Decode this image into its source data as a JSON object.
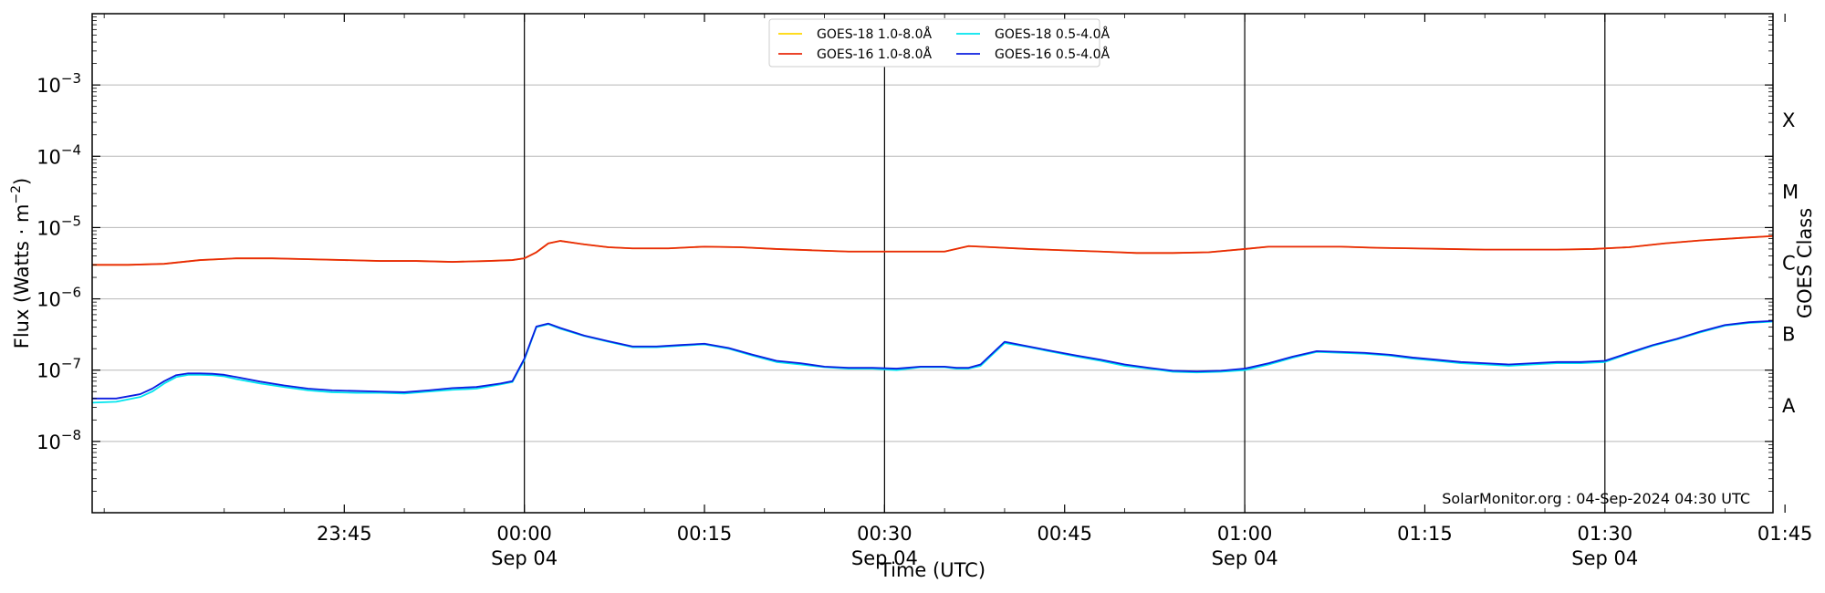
{
  "chart_data": {
    "type": "line",
    "title": "",
    "xlabel": "Time (UTC)",
    "ylabel_main": "Flux (Watts · m",
    "ylabel_exp": "−2",
    "ylabel_close": ")",
    "y2label": "GOES Class",
    "yscale": "log",
    "ylim": [
      1e-09,
      0.01
    ],
    "xlim_minutes": [
      -36,
      104
    ],
    "y_ticks": [
      {
        "value": 1e-08,
        "base": "10",
        "exp": "−8"
      },
      {
        "value": 1e-07,
        "base": "10",
        "exp": "−7"
      },
      {
        "value": 1e-06,
        "base": "10",
        "exp": "−6"
      },
      {
        "value": 1e-05,
        "base": "10",
        "exp": "−5"
      },
      {
        "value": 0.0001,
        "base": "10",
        "exp": "−4"
      },
      {
        "value": 0.001,
        "base": "10",
        "exp": "−3"
      }
    ],
    "goes_classes": [
      {
        "label": "A",
        "value": 3.16e-08
      },
      {
        "label": "B",
        "value": 3.16e-07
      },
      {
        "label": "C",
        "value": 3.16e-06
      },
      {
        "label": "M",
        "value": 3.16e-05
      },
      {
        "label": "X",
        "value": 0.000316
      }
    ],
    "x_ticks": [
      {
        "minute": -15,
        "line1": "23:45",
        "line2": ""
      },
      {
        "minute": 0,
        "line1": "00:00",
        "line2": "Sep 04"
      },
      {
        "minute": 15,
        "line1": "00:15",
        "line2": ""
      },
      {
        "minute": 30,
        "line1": "00:30",
        "line2": "Sep 04"
      },
      {
        "minute": 45,
        "line1": "00:45",
        "line2": ""
      },
      {
        "minute": 60,
        "line1": "01:00",
        "line2": "Sep 04"
      },
      {
        "minute": 75,
        "line1": "01:15",
        "line2": ""
      },
      {
        "minute": 90,
        "line1": "01:30",
        "line2": "Sep 04"
      },
      {
        "minute": 105,
        "line1": "01:45",
        "line2": ""
      }
    ],
    "vlines_minutes": [
      0,
      30,
      60,
      90
    ],
    "grid": "horizontal",
    "legend_placement": "top-center",
    "series": [
      {
        "name": "GOES-18 1.0-8.0Å",
        "color": "#ffd700",
        "x": [
          -36,
          -33,
          -30,
          -27,
          -24,
          -21,
          -18,
          -15,
          -12,
          -9,
          -6,
          -3,
          -1,
          0,
          1,
          2,
          3,
          5,
          7,
          9,
          12,
          15,
          18,
          21,
          24,
          27,
          30,
          33,
          35,
          37,
          39,
          42,
          45,
          48,
          51,
          54,
          57,
          60,
          62,
          65,
          68,
          71,
          74,
          77,
          80,
          83,
          86,
          89,
          92,
          95,
          98,
          101,
          104,
          107,
          109,
          111,
          113
        ],
        "y": [
          3e-06,
          3e-06,
          3.1e-06,
          3.5e-06,
          3.7e-06,
          3.7e-06,
          3.6e-06,
          3.5e-06,
          3.4e-06,
          3.4e-06,
          3.3e-06,
          3.4e-06,
          3.5e-06,
          3.7e-06,
          4.5e-06,
          6e-06,
          6.5e-06,
          5.8e-06,
          5.3e-06,
          5.1e-06,
          5.1e-06,
          5.4e-06,
          5.3e-06,
          5e-06,
          4.8e-06,
          4.6e-06,
          4.6e-06,
          4.6e-06,
          4.6e-06,
          5.5e-06,
          5.3e-06,
          5e-06,
          4.8e-06,
          4.6e-06,
          4.4e-06,
          4.4e-06,
          4.5e-06,
          5e-06,
          5.4e-06,
          5.4e-06,
          5.4e-06,
          5.2e-06,
          5.1e-06,
          5e-06,
          4.9e-06,
          4.9e-06,
          4.9e-06,
          5e-06,
          5.3e-06,
          6e-06,
          6.6e-06,
          7.1e-06,
          7.6e-06,
          8e-06,
          8.1e-06,
          8.1e-06,
          7.9e-06
        ]
      },
      {
        "name": "GOES-16 1.0-8.0Å",
        "color": "#e8290b",
        "x": [
          -36,
          -33,
          -30,
          -27,
          -24,
          -21,
          -18,
          -15,
          -12,
          -9,
          -6,
          -3,
          -1,
          0,
          1,
          2,
          3,
          5,
          7,
          9,
          12,
          15,
          18,
          21,
          24,
          27,
          30,
          33,
          35,
          37,
          39,
          42,
          45,
          48,
          51,
          54,
          57,
          60,
          62,
          65,
          68,
          71,
          74,
          77,
          80,
          83,
          86,
          89,
          92,
          95,
          98,
          101,
          104,
          107,
          109,
          111,
          113
        ],
        "y": [
          3e-06,
          3e-06,
          3.1e-06,
          3.5e-06,
          3.7e-06,
          3.7e-06,
          3.6e-06,
          3.5e-06,
          3.4e-06,
          3.4e-06,
          3.3e-06,
          3.4e-06,
          3.5e-06,
          3.7e-06,
          4.5e-06,
          6e-06,
          6.5e-06,
          5.8e-06,
          5.3e-06,
          5.1e-06,
          5.1e-06,
          5.4e-06,
          5.3e-06,
          5e-06,
          4.8e-06,
          4.6e-06,
          4.6e-06,
          4.6e-06,
          4.6e-06,
          5.5e-06,
          5.3e-06,
          5e-06,
          4.8e-06,
          4.6e-06,
          4.4e-06,
          4.4e-06,
          4.5e-06,
          5e-06,
          5.4e-06,
          5.4e-06,
          5.4e-06,
          5.2e-06,
          5.1e-06,
          5e-06,
          4.9e-06,
          4.9e-06,
          4.9e-06,
          5e-06,
          5.3e-06,
          6e-06,
          6.6e-06,
          7.1e-06,
          7.6e-06,
          8e-06,
          8.1e-06,
          8.1e-06,
          7.9e-06
        ]
      },
      {
        "name": "GOES-18 0.5-4.0Å",
        "color": "#00e5ee",
        "x": [
          -36,
          -34,
          -32,
          -31,
          -30,
          -29,
          -28,
          -27,
          -26,
          -25,
          -24,
          -22,
          -20,
          -18,
          -16,
          -14,
          -12,
          -10,
          -8,
          -6,
          -4,
          -2,
          -1,
          0,
          1,
          2,
          3,
          5,
          7,
          9,
          11,
          13,
          15,
          17,
          19,
          21,
          23,
          25,
          27,
          29,
          31,
          33,
          35,
          36,
          37,
          38,
          40,
          42,
          44,
          46,
          48,
          50,
          52,
          54,
          56,
          58,
          60,
          62,
          64,
          66,
          68,
          70,
          72,
          74,
          76,
          78,
          80,
          82,
          84,
          86,
          88,
          90,
          92,
          94,
          96,
          98,
          100,
          102,
          104,
          106,
          108,
          110,
          112,
          113
        ],
        "y": [
          3.5e-08,
          3.6e-08,
          4.2e-08,
          5e-08,
          6.5e-08,
          8e-08,
          8.6e-08,
          8.6e-08,
          8.5e-08,
          8.2e-08,
          7.5e-08,
          6.5e-08,
          5.8e-08,
          5.2e-08,
          4.9e-08,
          4.8e-08,
          4.8e-08,
          4.7e-08,
          5e-08,
          5.3e-08,
          5.5e-08,
          6.3e-08,
          6.8e-08,
          1.4e-07,
          4e-07,
          4.4e-07,
          3.8e-07,
          3e-07,
          2.5e-07,
          2.1e-07,
          2.1e-07,
          2.2e-07,
          2.3e-07,
          2e-07,
          1.6e-07,
          1.3e-07,
          1.2e-07,
          1.1e-07,
          1.05e-07,
          1.05e-07,
          1e-07,
          1.1e-07,
          1.1e-07,
          1.05e-07,
          1.05e-07,
          1.15e-07,
          2.4e-07,
          2.1e-07,
          1.8e-07,
          1.55e-07,
          1.35e-07,
          1.15e-07,
          1.05e-07,
          9.5e-08,
          9.3e-08,
          9.5e-08,
          1e-07,
          1.2e-07,
          1.5e-07,
          1.8e-07,
          1.75e-07,
          1.7e-07,
          1.6e-07,
          1.45e-07,
          1.35e-07,
          1.25e-07,
          1.2e-07,
          1.15e-07,
          1.2e-07,
          1.25e-07,
          1.25e-07,
          1.3e-07,
          1.7e-07,
          2.2e-07,
          2.7e-07,
          3.4e-07,
          4.2e-07,
          4.6e-07,
          4.8e-07,
          4.8e-07,
          4.6e-07,
          4.3e-07,
          4.1e-07,
          3.5e-07
        ]
      },
      {
        "name": "GOES-16 0.5-4.0Å",
        "color": "#0b1ee0",
        "x": [
          -36,
          -34,
          -32,
          -31,
          -30,
          -29,
          -28,
          -27,
          -26,
          -25,
          -24,
          -22,
          -20,
          -18,
          -16,
          -14,
          -12,
          -10,
          -8,
          -6,
          -4,
          -2,
          -1,
          0,
          1,
          2,
          3,
          5,
          7,
          9,
          11,
          13,
          15,
          17,
          19,
          21,
          23,
          25,
          27,
          29,
          31,
          33,
          35,
          36,
          37,
          38,
          40,
          42,
          44,
          46,
          48,
          50,
          52,
          54,
          56,
          58,
          60,
          62,
          64,
          66,
          68,
          70,
          72,
          74,
          76,
          78,
          80,
          82,
          84,
          86,
          88,
          90,
          92,
          94,
          96,
          98,
          100,
          102,
          104,
          106,
          108,
          110,
          112,
          113
        ],
        "y": [
          4e-08,
          4e-08,
          4.6e-08,
          5.5e-08,
          7e-08,
          8.5e-08,
          9e-08,
          9e-08,
          8.9e-08,
          8.6e-08,
          8e-08,
          6.9e-08,
          6.1e-08,
          5.5e-08,
          5.2e-08,
          5.1e-08,
          5e-08,
          4.9e-08,
          5.2e-08,
          5.6e-08,
          5.8e-08,
          6.5e-08,
          7e-08,
          1.45e-07,
          4.1e-07,
          4.5e-07,
          3.9e-07,
          3.05e-07,
          2.55e-07,
          2.15e-07,
          2.15e-07,
          2.25e-07,
          2.35e-07,
          2.05e-07,
          1.65e-07,
          1.35e-07,
          1.25e-07,
          1.12e-07,
          1.08e-07,
          1.08e-07,
          1.05e-07,
          1.12e-07,
          1.12e-07,
          1.08e-07,
          1.08e-07,
          1.2e-07,
          2.5e-07,
          2.15e-07,
          1.85e-07,
          1.6e-07,
          1.4e-07,
          1.2e-07,
          1.08e-07,
          9.8e-08,
          9.6e-08,
          9.8e-08,
          1.05e-07,
          1.25e-07,
          1.55e-07,
          1.85e-07,
          1.8e-07,
          1.75e-07,
          1.65e-07,
          1.5e-07,
          1.4e-07,
          1.3e-07,
          1.25e-07,
          1.2e-07,
          1.25e-07,
          1.3e-07,
          1.3e-07,
          1.35e-07,
          1.75e-07,
          2.25e-07,
          2.75e-07,
          3.5e-07,
          4.3e-07,
          4.7e-07,
          4.9e-07,
          4.9e-07,
          4.7e-07,
          4.4e-07,
          4.2e-07,
          3.6e-07
        ]
      }
    ],
    "credit": "SolarMonitor.org : 04-Sep-2024 04:30 UTC"
  }
}
